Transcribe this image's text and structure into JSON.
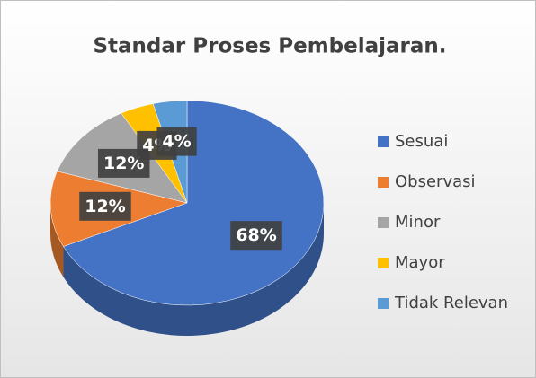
{
  "chart_data": {
    "type": "pie",
    "title": "Standar Proses Pembelajaran.",
    "categories": [
      "Sesuai",
      "Observasi",
      "Minor",
      "Mayor",
      "Tidak Relevan"
    ],
    "values": [
      68,
      12,
      12,
      4,
      4
    ],
    "value_labels": [
      "68%",
      "12%",
      "12%",
      "4%",
      "4%"
    ],
    "colors": [
      "#4472c4",
      "#ed7d31",
      "#a5a5a5",
      "#ffc000",
      "#5b9bd5"
    ],
    "legend": "right"
  }
}
